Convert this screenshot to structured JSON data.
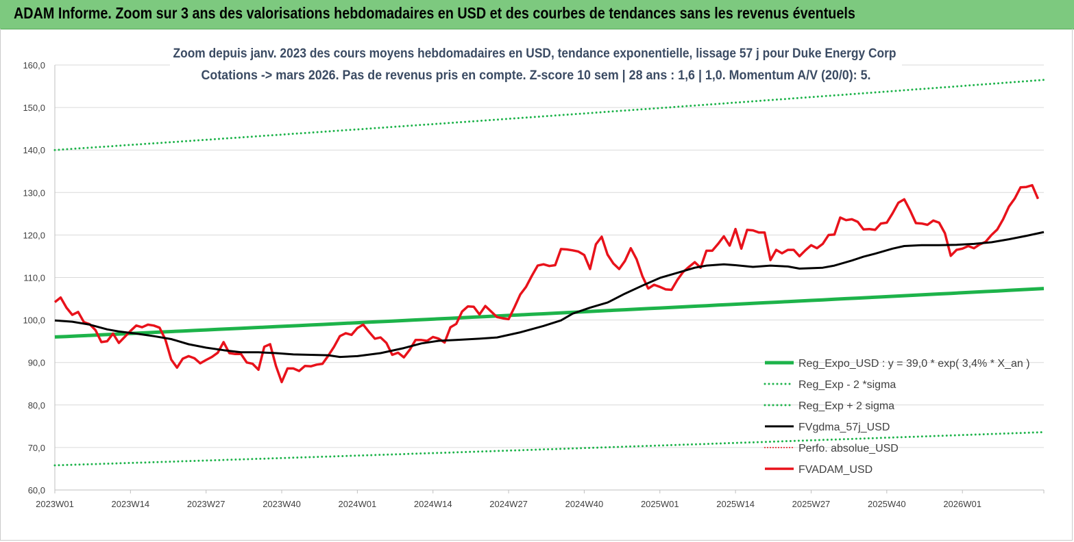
{
  "banner_title": "ADAM Informe. Zoom sur 3 ans des valorisations hebdomadaires en USD et des courbes de tendances sans les revenus éventuels",
  "chart_data": {
    "type": "line",
    "title_line1": "Zoom depuis janv. 2023 des cours moyens hebdomadaires en USD, tendance exponentielle, lissage 57 j pour Duke Energy Corp",
    "title_line2": "Cotations -> mars 2026. Pas de revenus pris en compte. Z-score 10 sem  | 28 ans : 1,6  | 1,0. Momentum A/V (20/0): 5.",
    "x_tick_labels": [
      "2023W01",
      "2023W14",
      "2023W27",
      "2023W40",
      "2024W01",
      "2024W14",
      "2024W27",
      "2024W40",
      "2025W01",
      "2025W14",
      "2025W27",
      "2025W40",
      "2026W01"
    ],
    "y_tick_labels": [
      "60,0",
      "70,0",
      "80,0",
      "90,0",
      "100,0",
      "110,0",
      "120,0",
      "130,0",
      "140,0",
      "150,0",
      "160,0"
    ],
    "ylim": [
      60,
      160
    ],
    "n_weeks": 170,
    "grid": "horizontal",
    "legend_position": "bottom-right",
    "colors": {
      "reg": "#1db34a",
      "band": "#1db34a",
      "ma": "#000000",
      "adam": "#e8121b",
      "perfo": "#e8121b"
    },
    "series": [
      {
        "name": "Reg_Expo_USD : y = 39,0 * exp( 3,4% *  X_an )",
        "key": "reg",
        "style": "solid-thick",
        "start": 96.0,
        "end": 107.4
      },
      {
        "name": "Reg_Exp - 2 *sigma",
        "key": "lower",
        "style": "dotted",
        "start": 65.8,
        "end": 73.6
      },
      {
        "name": "Reg_Exp + 2 sigma",
        "key": "upper",
        "style": "dotted",
        "start": 140.0,
        "end": 156.5
      },
      {
        "name": "FVgdma_57j_USD",
        "key": "ma",
        "style": "solid",
        "points": [
          [
            0,
            99.9
          ],
          [
            3,
            99.6
          ],
          [
            6,
            98.9
          ],
          [
            9,
            97.8
          ],
          [
            11,
            97.3
          ],
          [
            14,
            96.8
          ],
          [
            17,
            96.2
          ],
          [
            20,
            95.5
          ],
          [
            23,
            94.3
          ],
          [
            26,
            93.5
          ],
          [
            29,
            92.9
          ],
          [
            32,
            92.4
          ],
          [
            35,
            92.4
          ],
          [
            38,
            92.2
          ],
          [
            41,
            91.9
          ],
          [
            44,
            91.8
          ],
          [
            47,
            91.7
          ],
          [
            49,
            91.3
          ],
          [
            52,
            91.5
          ],
          [
            56,
            92.2
          ],
          [
            60,
            93.4
          ],
          [
            63,
            94.5
          ],
          [
            66,
            95.1
          ],
          [
            69,
            95.3
          ],
          [
            73,
            95.6
          ],
          [
            76,
            95.9
          ],
          [
            80,
            97.1
          ],
          [
            84,
            98.6
          ],
          [
            87,
            99.9
          ],
          [
            89,
            101.5
          ],
          [
            92,
            102.9
          ],
          [
            95,
            104.1
          ],
          [
            98,
            106.2
          ],
          [
            101,
            108.1
          ],
          [
            104,
            109.9
          ],
          [
            107,
            111.1
          ],
          [
            110,
            112.3
          ],
          [
            112,
            112.8
          ],
          [
            115,
            113.1
          ],
          [
            117,
            112.9
          ],
          [
            120,
            112.5
          ],
          [
            123,
            112.8
          ],
          [
            126,
            112.6
          ],
          [
            128,
            112.1
          ],
          [
            132,
            112.3
          ],
          [
            134,
            112.8
          ],
          [
            137,
            114.0
          ],
          [
            139,
            114.9
          ],
          [
            141,
            115.6
          ],
          [
            144,
            116.8
          ],
          [
            146,
            117.4
          ],
          [
            149,
            117.6
          ],
          [
            152,
            117.6
          ],
          [
            155,
            117.7
          ],
          [
            158,
            117.9
          ],
          [
            161,
            118.3
          ],
          [
            164,
            119.0
          ],
          [
            167,
            119.8
          ],
          [
            170,
            120.7
          ]
        ]
      },
      {
        "name": "Perfo. absolue_USD",
        "key": "perfo",
        "style": "dotted-red",
        "points": []
      },
      {
        "name": "FVADAM_USD",
        "key": "adam",
        "style": "solid-thick",
        "points": [
          [
            0,
            104.2
          ],
          [
            1,
            105.3
          ],
          [
            2,
            102.9
          ],
          [
            3,
            101.2
          ],
          [
            4,
            101.9
          ],
          [
            5,
            99.5
          ],
          [
            6,
            99.0
          ],
          [
            7,
            97.6
          ],
          [
            8,
            94.8
          ],
          [
            9,
            95.0
          ],
          [
            10,
            96.8
          ],
          [
            11,
            94.6
          ],
          [
            12,
            96.0
          ],
          [
            13,
            97.4
          ],
          [
            14,
            98.7
          ],
          [
            15,
            98.3
          ],
          [
            16,
            98.9
          ],
          [
            17,
            98.7
          ],
          [
            18,
            98.2
          ],
          [
            19,
            95.4
          ],
          [
            20,
            90.7
          ],
          [
            21,
            88.8
          ],
          [
            22,
            90.9
          ],
          [
            23,
            91.5
          ],
          [
            24,
            91.0
          ],
          [
            25,
            89.8
          ],
          [
            26,
            90.6
          ],
          [
            27,
            91.3
          ],
          [
            28,
            92.3
          ],
          [
            29,
            94.8
          ],
          [
            30,
            92.2
          ],
          [
            31,
            92.0
          ],
          [
            32,
            92.0
          ],
          [
            33,
            90.0
          ],
          [
            34,
            89.7
          ],
          [
            35,
            88.3
          ],
          [
            36,
            93.7
          ],
          [
            37,
            94.3
          ],
          [
            38,
            89.2
          ],
          [
            39,
            85.4
          ],
          [
            40,
            88.6
          ],
          [
            41,
            88.6
          ],
          [
            42,
            88.0
          ],
          [
            43,
            89.2
          ],
          [
            44,
            89.1
          ],
          [
            45,
            89.5
          ],
          [
            46,
            89.7
          ],
          [
            47,
            91.6
          ],
          [
            48,
            93.7
          ],
          [
            49,
            96.2
          ],
          [
            50,
            96.9
          ],
          [
            51,
            96.5
          ],
          [
            52,
            98.1
          ],
          [
            53,
            98.9
          ],
          [
            54,
            97.2
          ],
          [
            55,
            95.6
          ],
          [
            56,
            95.9
          ],
          [
            57,
            94.6
          ],
          [
            58,
            91.8
          ],
          [
            59,
            92.3
          ],
          [
            60,
            91.2
          ],
          [
            61,
            93.0
          ],
          [
            62,
            95.3
          ],
          [
            63,
            95.3
          ],
          [
            64,
            95.1
          ],
          [
            65,
            96.0
          ],
          [
            66,
            95.6
          ],
          [
            67,
            94.7
          ],
          [
            68,
            98.3
          ],
          [
            69,
            99.1
          ],
          [
            70,
            102.0
          ],
          [
            71,
            103.2
          ],
          [
            72,
            103.1
          ],
          [
            73,
            101.3
          ],
          [
            74,
            103.3
          ],
          [
            75,
            102.0
          ],
          [
            76,
            100.7
          ],
          [
            77,
            100.4
          ],
          [
            78,
            100.2
          ],
          [
            79,
            103.0
          ],
          [
            80,
            106.0
          ],
          [
            81,
            107.8
          ],
          [
            82,
            110.4
          ],
          [
            83,
            112.8
          ],
          [
            84,
            113.1
          ],
          [
            85,
            112.7
          ],
          [
            86,
            112.9
          ],
          [
            87,
            116.7
          ],
          [
            88,
            116.6
          ],
          [
            89,
            116.4
          ],
          [
            90,
            116.1
          ],
          [
            91,
            115.3
          ],
          [
            92,
            112.0
          ],
          [
            93,
            117.8
          ],
          [
            94,
            119.6
          ],
          [
            95,
            115.4
          ],
          [
            96,
            113.3
          ],
          [
            97,
            112.0
          ],
          [
            98,
            113.9
          ],
          [
            99,
            116.9
          ],
          [
            100,
            114.3
          ],
          [
            101,
            110.3
          ],
          [
            102,
            107.4
          ],
          [
            103,
            108.3
          ],
          [
            104,
            107.8
          ],
          [
            105,
            107.2
          ],
          [
            106,
            107.1
          ],
          [
            107,
            109.4
          ],
          [
            108,
            111.3
          ],
          [
            109,
            112.5
          ],
          [
            110,
            113.6
          ],
          [
            111,
            112.3
          ],
          [
            112,
            116.3
          ],
          [
            113,
            116.3
          ],
          [
            114,
            117.9
          ],
          [
            115,
            119.7
          ],
          [
            116,
            117.5
          ],
          [
            117,
            121.4
          ],
          [
            118,
            116.8
          ],
          [
            119,
            121.2
          ],
          [
            120,
            121.1
          ],
          [
            121,
            120.6
          ],
          [
            122,
            120.6
          ],
          [
            123,
            114.1
          ],
          [
            124,
            116.5
          ],
          [
            125,
            115.7
          ],
          [
            126,
            116.5
          ],
          [
            127,
            116.5
          ],
          [
            128,
            115.0
          ],
          [
            129,
            116.4
          ],
          [
            130,
            117.6
          ],
          [
            131,
            116.9
          ],
          [
            132,
            117.9
          ],
          [
            133,
            120.0
          ],
          [
            134,
            120.1
          ],
          [
            135,
            124.1
          ],
          [
            136,
            123.5
          ],
          [
            137,
            123.7
          ],
          [
            138,
            123.1
          ],
          [
            139,
            121.3
          ],
          [
            140,
            121.4
          ],
          [
            141,
            121.2
          ],
          [
            142,
            122.7
          ],
          [
            143,
            122.9
          ],
          [
            144,
            125.1
          ],
          [
            145,
            127.6
          ],
          [
            146,
            128.4
          ],
          [
            147,
            125.8
          ],
          [
            148,
            122.8
          ],
          [
            149,
            122.7
          ],
          [
            150,
            122.4
          ],
          [
            151,
            123.4
          ],
          [
            152,
            122.9
          ],
          [
            153,
            120.4
          ],
          [
            154,
            115.1
          ],
          [
            155,
            116.5
          ],
          [
            156,
            116.8
          ],
          [
            157,
            117.4
          ],
          [
            158,
            116.9
          ],
          [
            159,
            117.8
          ],
          [
            160,
            118.4
          ],
          [
            161,
            120.0
          ],
          [
            162,
            121.3
          ],
          [
            163,
            123.7
          ],
          [
            164,
            126.7
          ],
          [
            165,
            128.6
          ],
          [
            166,
            131.2
          ],
          [
            167,
            131.3
          ],
          [
            168,
            131.7
          ],
          [
            169,
            128.5
          ]
        ]
      }
    ]
  }
}
